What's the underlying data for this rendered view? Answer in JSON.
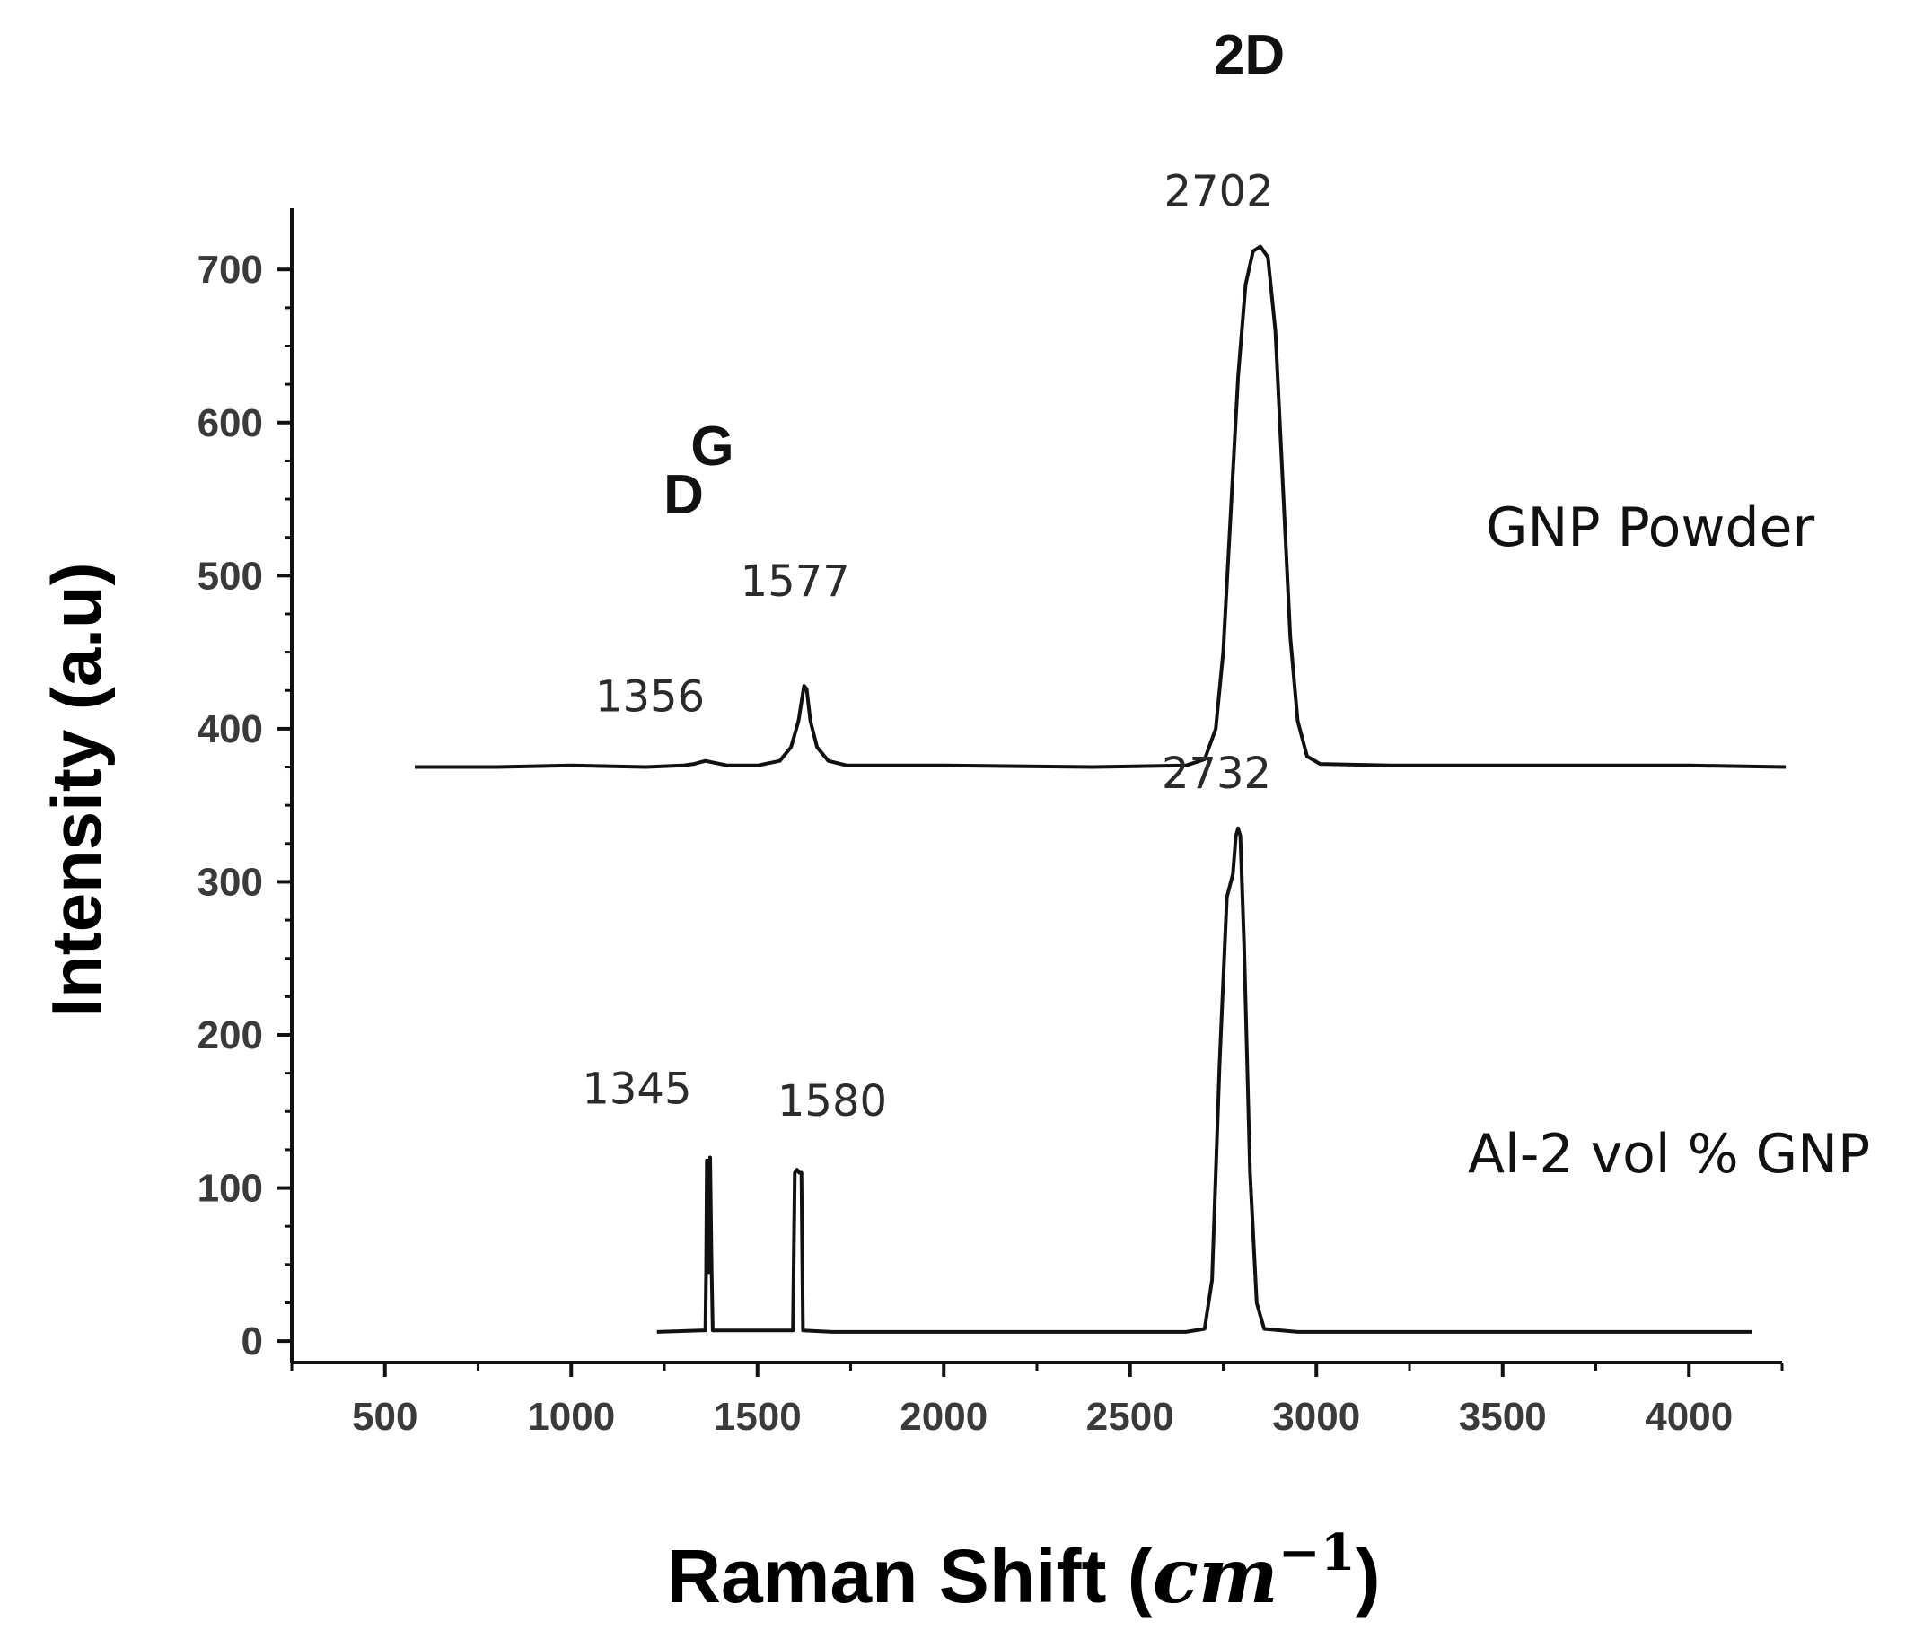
{
  "chart_data": {
    "type": "line",
    "xlabel": "Raman Shift (",
    "xlabel_unit": "cm",
    "xlabel_exp": "−1",
    "xlabel_close": ")",
    "ylabel": "Intensity (a.u)",
    "xlim": [
      250,
      4250
    ],
    "ylim": [
      -14,
      740
    ],
    "x_ticks": [
      500,
      1000,
      1500,
      2000,
      2500,
      3000,
      3500,
      4000
    ],
    "y_ticks": [
      0,
      100,
      200,
      300,
      400,
      500,
      600,
      700
    ],
    "grid": false,
    "series": [
      {
        "name": "GNP Powder",
        "color": "#111111",
        "points": [
          [
            580,
            375
          ],
          [
            800,
            375
          ],
          [
            1000,
            376
          ],
          [
            1200,
            375
          ],
          [
            1300,
            376
          ],
          [
            1330,
            377
          ],
          [
            1360,
            379
          ],
          [
            1380,
            378
          ],
          [
            1420,
            376
          ],
          [
            1500,
            376
          ],
          [
            1560,
            379
          ],
          [
            1590,
            388
          ],
          [
            1610,
            405
          ],
          [
            1625,
            428
          ],
          [
            1632,
            426
          ],
          [
            1642,
            405
          ],
          [
            1660,
            388
          ],
          [
            1690,
            379
          ],
          [
            1740,
            376
          ],
          [
            2000,
            376
          ],
          [
            2400,
            375
          ],
          [
            2650,
            376
          ],
          [
            2700,
            380
          ],
          [
            2730,
            400
          ],
          [
            2750,
            450
          ],
          [
            2770,
            540
          ],
          [
            2790,
            630
          ],
          [
            2810,
            690
          ],
          [
            2830,
            712
          ],
          [
            2850,
            715
          ],
          [
            2870,
            708
          ],
          [
            2890,
            660
          ],
          [
            2910,
            560
          ],
          [
            2930,
            460
          ],
          [
            2950,
            405
          ],
          [
            2975,
            382
          ],
          [
            3010,
            377
          ],
          [
            3200,
            376
          ],
          [
            3500,
            376
          ],
          [
            3800,
            376
          ],
          [
            4000,
            376
          ],
          [
            4260,
            375
          ]
        ]
      },
      {
        "name": "Al-2 vol % GNP",
        "color": "#111111",
        "points": [
          [
            1230,
            6
          ],
          [
            1350,
            7
          ],
          [
            1360,
            7
          ],
          [
            1362,
            45
          ],
          [
            1364,
            118
          ],
          [
            1367,
            118
          ],
          [
            1370,
            45
          ],
          [
            1373,
            120
          ],
          [
            1377,
            45
          ],
          [
            1380,
            7
          ],
          [
            1450,
            7
          ],
          [
            1595,
            7
          ],
          [
            1600,
            110
          ],
          [
            1606,
            112
          ],
          [
            1612,
            110
          ],
          [
            1618,
            110
          ],
          [
            1622,
            7
          ],
          [
            1700,
            6
          ],
          [
            2000,
            6
          ],
          [
            2300,
            6
          ],
          [
            2650,
            6
          ],
          [
            2700,
            8
          ],
          [
            2720,
            40
          ],
          [
            2740,
            180
          ],
          [
            2760,
            290
          ],
          [
            2776,
            305
          ],
          [
            2784,
            330
          ],
          [
            2790,
            335
          ],
          [
            2796,
            330
          ],
          [
            2806,
            260
          ],
          [
            2822,
            110
          ],
          [
            2840,
            25
          ],
          [
            2860,
            8
          ],
          [
            2950,
            6
          ],
          [
            3300,
            6
          ],
          [
            3700,
            6
          ],
          [
            4000,
            6
          ],
          [
            4170,
            6
          ]
        ]
      }
    ],
    "peaks": [
      {
        "x": 1356,
        "y": 379,
        "label": "1356"
      },
      {
        "x": 1577,
        "y": 428,
        "label": "1577"
      },
      {
        "x": 2702,
        "y": 715,
        "label": "2702"
      },
      {
        "x": 1345,
        "y": 120,
        "label": "1345"
      },
      {
        "x": 1580,
        "y": 112,
        "label": "1580"
      },
      {
        "x": 2732,
        "y": 335,
        "label": "2732"
      }
    ],
    "bands": [
      {
        "label": "D",
        "x": 1350
      },
      {
        "label": "G",
        "x": 1620
      },
      {
        "label": "2D",
        "x": 2820
      }
    ]
  }
}
